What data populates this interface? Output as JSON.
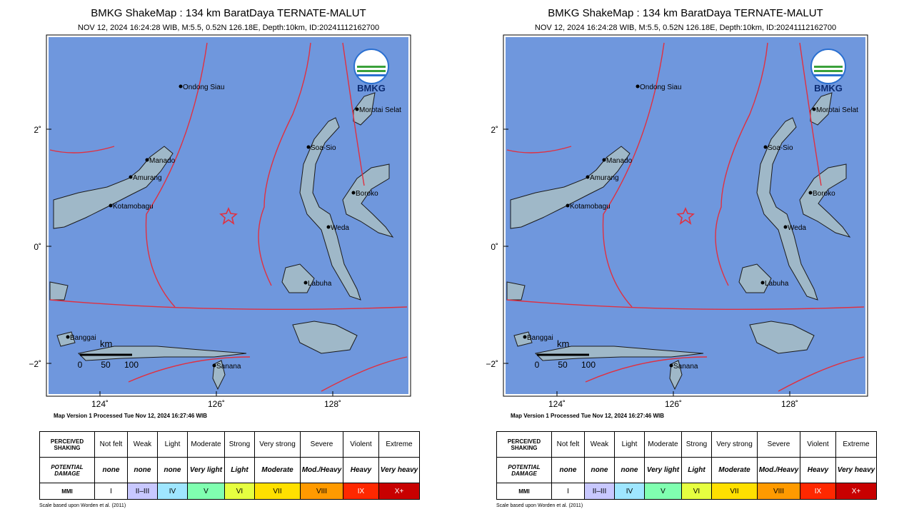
{
  "panel": {
    "title": "BMKG ShakeMap : 134 km BaratDaya TERNATE-MALUT",
    "subtitle": "NOV 12, 2024 16:24:28 WIB, M:5.5, 0.52N 126.18E, Depth:10km, ID:20241112162700",
    "logo_text": "BMKG",
    "lat_ticks": [
      {
        "value": 2,
        "label": "2˚"
      },
      {
        "value": 0,
        "label": "0˚"
      },
      {
        "value": -2,
        "label": "−2˚"
      }
    ],
    "lon_ticks": [
      {
        "value": 124,
        "label": "124˚"
      },
      {
        "value": 126,
        "label": "126˚"
      },
      {
        "value": 128,
        "label": "128˚"
      }
    ],
    "places": [
      "Ondong Siau",
      "Morotai Selat",
      "Manado",
      "Amurang",
      "Kotamobagu",
      "Soa-Sio",
      "Boroko",
      "Weda",
      "Labuha",
      "Banggai",
      "Sanana"
    ],
    "scale_bar": {
      "unit": "km",
      "ticks": [
        0,
        50,
        100
      ]
    },
    "version_note": "Map Version 1 Processed Tue Nov 12, 2024 16:27:46 WIB",
    "table": {
      "rows": [
        {
          "label": "PERCEIVED SHAKING",
          "cells": [
            "Not felt",
            "Weak",
            "Light",
            "Moderate",
            "Strong",
            "Very strong",
            "Severe",
            "Violent",
            "Extreme"
          ]
        },
        {
          "label": "POTENTIAL DAMAGE",
          "cells": [
            "none",
            "none",
            "none",
            "Very light",
            "Light",
            "Moderate",
            "Mod./Heavy",
            "Heavy",
            "Very heavy"
          ]
        },
        {
          "label": "MMI",
          "cells": [
            "I",
            "II–III",
            "IV",
            "V",
            "VI",
            "VII",
            "VIII",
            "IX",
            "X+"
          ]
        }
      ],
      "mmi_colors": [
        "#ffffff",
        "#c8c8ff",
        "#9fe6ff",
        "#80ffb0",
        "#e6ff40",
        "#ffe000",
        "#ff9a00",
        "#ff2800",
        "#c80000"
      ]
    },
    "scale_note": "Scale based upon Worden et al. (2011)"
  }
}
